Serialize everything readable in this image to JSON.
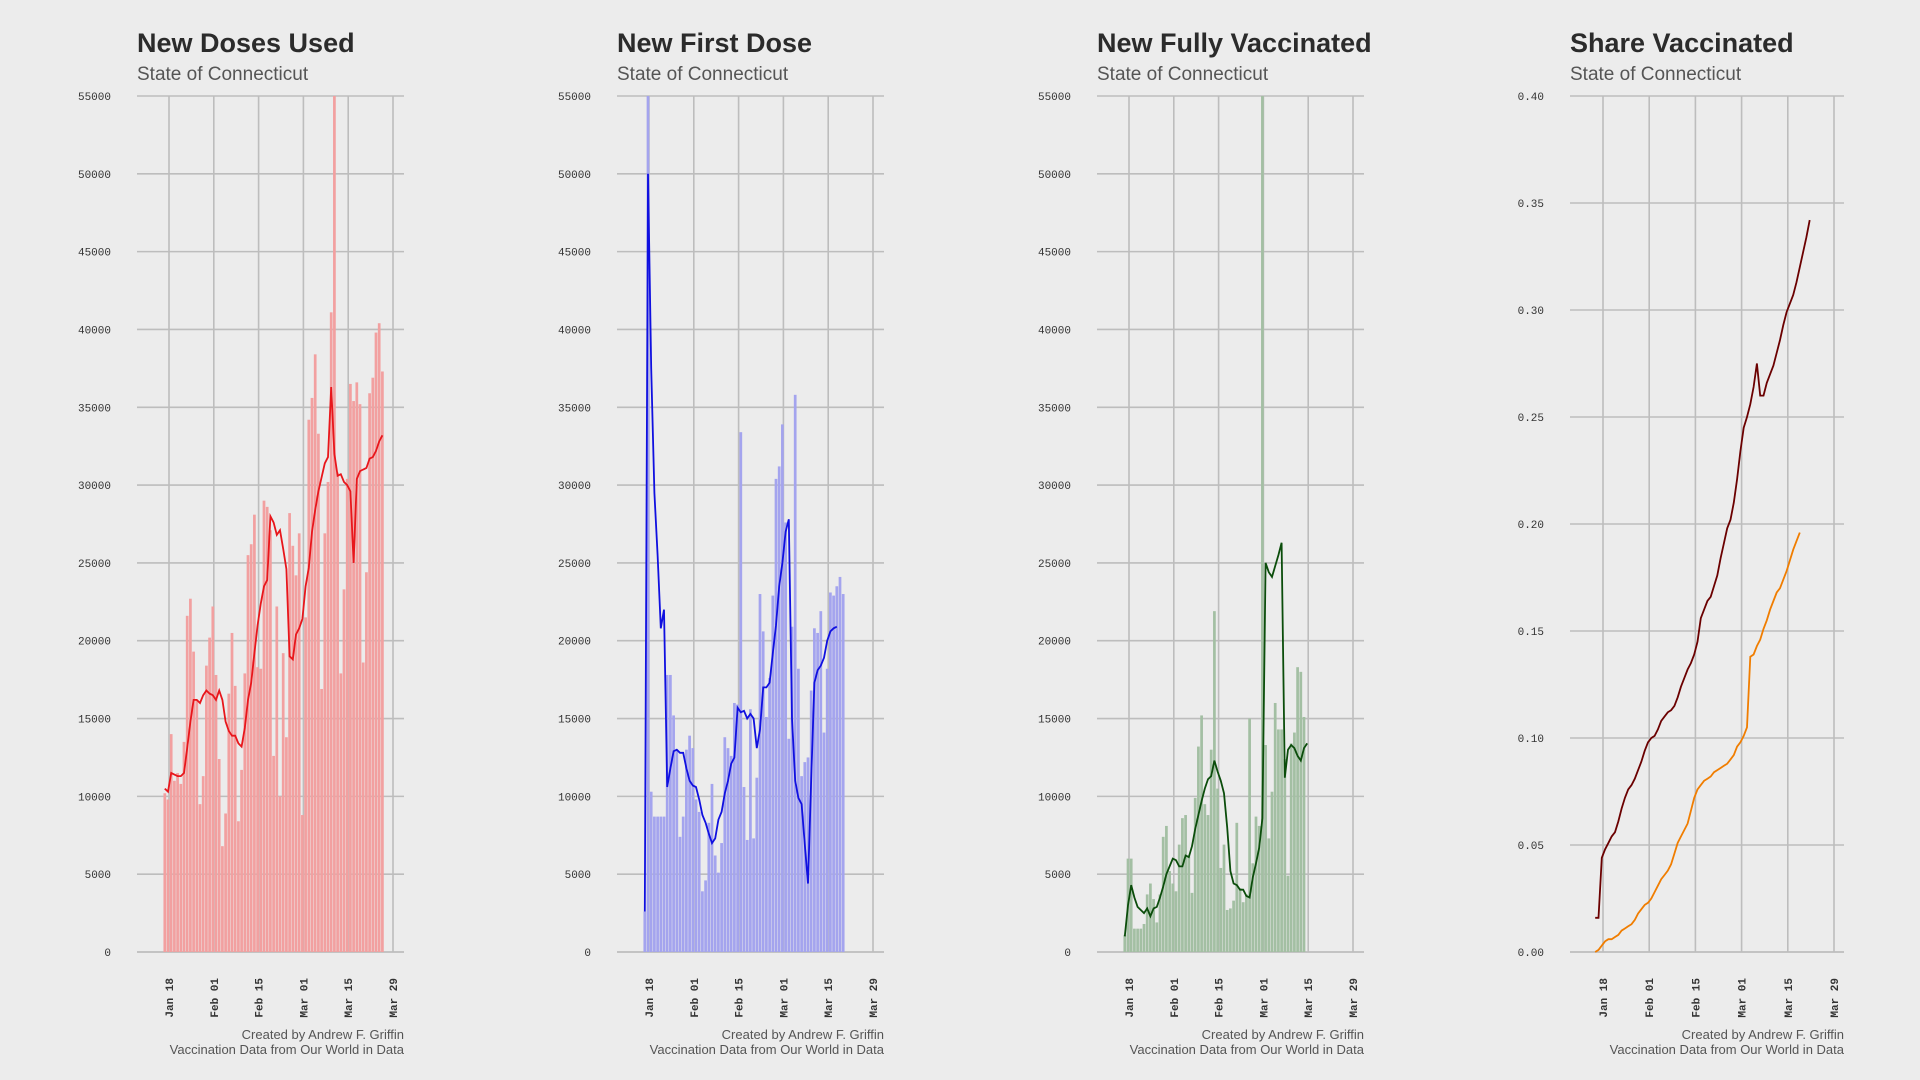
{
  "chart_data": [
    {
      "type": "bar+line",
      "title": "New Doses Used",
      "subtitle": "State of Connecticut",
      "caption_line1": "Created by Andrew F. Griffin",
      "caption_line2": "Vaccination Data from Our World in Data",
      "ylim": [
        0,
        55000
      ],
      "yticks": [
        "0",
        "5000",
        "10000",
        "15000",
        "20000",
        "25000",
        "30000",
        "35000",
        "40000",
        "45000",
        "50000",
        "55000"
      ],
      "xticks": [
        "Jan 18",
        "Feb 01",
        "Feb 15",
        "Mar 01",
        "Mar 15",
        "Mar 29"
      ],
      "x_start": "2021-01-12",
      "bar_color": "#f2a0a0",
      "line_color": "#e8161b",
      "bars": [
        10200,
        9800,
        14000,
        11000,
        11500,
        10800,
        13500,
        21600,
        22700,
        19300,
        16200,
        9500,
        11300,
        18400,
        20200,
        22200,
        17800,
        12400,
        6800,
        8900,
        16600,
        20500,
        17100,
        8400,
        11700,
        17900,
        25500,
        26200,
        28100,
        18300,
        18200,
        29000,
        28600,
        27100,
        12600,
        22200,
        10000,
        19200,
        13800,
        28200,
        26100,
        24200,
        26900,
        8800,
        21500,
        34200,
        35600,
        38400,
        33300,
        16900,
        26900,
        30200,
        41100,
        55000,
        30800,
        17900,
        23300,
        30400,
        36500,
        35400,
        36600,
        35200,
        18600,
        24400,
        35900,
        36900,
        39800,
        40400,
        37300
      ],
      "line": [
        10500,
        10300,
        11500,
        11400,
        11300,
        11300,
        11500,
        13100,
        14800,
        16200,
        16200,
        16000,
        16500,
        16800,
        16600,
        16500,
        16200,
        16800,
        16200,
        14800,
        14200,
        13900,
        13900,
        13400,
        13200,
        14400,
        16200,
        17300,
        19200,
        21000,
        22400,
        23500,
        23900,
        28000,
        27600,
        26800,
        27100,
        25900,
        24600,
        19000,
        18800,
        20400,
        20800,
        21400,
        23500,
        24700,
        27000,
        28400,
        29600,
        30500,
        31400,
        31800,
        36300,
        32000,
        30600,
        30700,
        30200,
        30000,
        29600,
        25000,
        30400,
        30900,
        31000,
        31100,
        31700,
        31800,
        32200,
        32800,
        33200
      ]
    },
    {
      "type": "bar+line",
      "title": "New First Dose",
      "subtitle": "State of Connecticut",
      "caption_line1": "Created by Andrew F. Griffin",
      "caption_line2": "Vaccination Data from Our World in Data",
      "ylim": [
        0,
        55000
      ],
      "yticks": [
        "0",
        "5000",
        "10000",
        "15000",
        "20000",
        "25000",
        "30000",
        "35000",
        "40000",
        "45000",
        "50000",
        "55000"
      ],
      "xticks": [
        "Jan 18",
        "Feb 01",
        "Feb 15",
        "Mar 01",
        "Mar 15",
        "Mar 29"
      ],
      "x_start": "2021-01-12",
      "bar_color": "#a4a4ee",
      "line_color": "#1010e0",
      "bars": [
        2600,
        55000,
        10300,
        8700,
        8700,
        8700,
        8700,
        17800,
        17800,
        15200,
        13000,
        7400,
        8700,
        13000,
        13900,
        13100,
        9800,
        9000,
        3900,
        4600,
        8300,
        10800,
        6200,
        5100,
        7000,
        13800,
        13100,
        12600,
        16000,
        15900,
        33400,
        10600,
        7200,
        15600,
        7300,
        11200,
        23000,
        20600,
        15100,
        17600,
        22900,
        30400,
        31200,
        33900,
        27600,
        13700,
        20900,
        35800,
        18200,
        11300,
        12200,
        12500,
        16800,
        20800,
        20500,
        21900,
        14100,
        18200,
        23100,
        22900,
        23500,
        24100,
        23000
      ],
      "line": [
        2600,
        50000,
        37500,
        29500,
        25500,
        20800,
        22000,
        10600,
        11800,
        12900,
        13000,
        12800,
        12800,
        11800,
        11000,
        10700,
        10600,
        9800,
        8800,
        8300,
        7600,
        7000,
        7300,
        8500,
        9000,
        10200,
        11000,
        12100,
        12500,
        15700,
        15400,
        15500,
        15000,
        15300,
        15000,
        13100,
        14300,
        17000,
        17000,
        17300,
        19200,
        21000,
        23500,
        25000,
        27000,
        27800,
        15000,
        11000,
        9900,
        9500,
        6900,
        4400,
        11100,
        17300,
        18100,
        18400,
        18900,
        20000,
        20600,
        20800,
        20900
      ]
    },
    {
      "type": "bar+line",
      "title": "New Fully Vaccinated",
      "subtitle": "State of Connecticut",
      "caption_line1": "Created by Andrew F. Griffin",
      "caption_line2": "Vaccination Data from Our World in Data",
      "ylim": [
        0,
        55000
      ],
      "yticks": [
        "0",
        "5000",
        "10000",
        "15000",
        "20000",
        "25000",
        "30000",
        "35000",
        "40000",
        "45000",
        "50000",
        "55000"
      ],
      "xticks": [
        "Jan 18",
        "Feb 01",
        "Feb 15",
        "Mar 01",
        "Mar 15",
        "Mar 29"
      ],
      "x_start": "2021-01-12",
      "bar_color": "#a3bfa3",
      "line_color": "#0b4d0b",
      "bars": [
        1100,
        6000,
        6000,
        1500,
        1500,
        1500,
        1800,
        3700,
        4400,
        3400,
        1900,
        3700,
        7400,
        8100,
        5200,
        4400,
        3900,
        6900,
        8600,
        8800,
        6200,
        3800,
        9900,
        13200,
        15200,
        9500,
        8800,
        13000,
        21900,
        10500,
        5400,
        6900,
        2700,
        2800,
        3300,
        8300,
        4100,
        3200,
        3700,
        15000,
        5700,
        8700,
        8100,
        55000,
        13300,
        7300,
        10300,
        16000,
        14300,
        14300,
        12400,
        4900,
        13400,
        14100,
        18300,
        18000,
        15100
      ],
      "line": [
        1000,
        3000,
        4300,
        3500,
        2900,
        2700,
        2500,
        2800,
        2300,
        2800,
        2900,
        3500,
        4200,
        5000,
        5500,
        6000,
        5900,
        5500,
        5500,
        6200,
        6100,
        6800,
        7900,
        8800,
        9700,
        10500,
        11100,
        11300,
        12300,
        11600,
        11000,
        10200,
        8000,
        5200,
        4400,
        4300,
        4000,
        4000,
        3600,
        3500,
        4800,
        5700,
        6700,
        8600,
        25000,
        24400,
        24100,
        24800,
        25500,
        26300,
        11200,
        13000,
        13300,
        13100,
        12600,
        12300,
        13100,
        13400
      ]
    },
    {
      "type": "line",
      "title": "Share Vaccinated",
      "subtitle": "State of Connecticut",
      "caption_line1": "Created by Andrew F. Griffin",
      "caption_line2": "Vaccination Data from Our World in Data",
      "ylim": [
        0,
        0.4
      ],
      "yticks": [
        "0.00",
        "0.05",
        "0.10",
        "0.15",
        "0.20",
        "0.25",
        "0.30",
        "0.35",
        "0.40"
      ],
      "xticks": [
        "Jan 18",
        "Feb 01",
        "Feb 15",
        "Mar 01",
        "Mar 15",
        "Mar 29"
      ],
      "x_start": "2021-01-12",
      "series": [
        {
          "color": "#6b0000",
          "values": [
            0.016,
            0.016,
            0.044,
            0.048,
            0.051,
            0.054,
            0.056,
            0.061,
            0.067,
            0.072,
            0.076,
            0.078,
            0.081,
            0.085,
            0.089,
            0.094,
            0.098,
            0.1,
            0.101,
            0.104,
            0.108,
            0.11,
            0.112,
            0.113,
            0.115,
            0.119,
            0.124,
            0.128,
            0.132,
            0.135,
            0.139,
            0.145,
            0.156,
            0.16,
            0.164,
            0.166,
            0.171,
            0.176,
            0.184,
            0.191,
            0.198,
            0.202,
            0.21,
            0.221,
            0.234,
            0.245,
            0.25,
            0.256,
            0.264,
            0.275,
            0.26,
            0.26,
            0.266,
            0.27,
            0.274,
            0.28,
            0.286,
            0.293,
            0.299,
            0.303,
            0.307,
            0.313,
            0.32,
            0.327,
            0.334,
            0.342
          ]
        },
        {
          "color": "#f07d00",
          "values": [
            0.0,
            0.001,
            0.003,
            0.005,
            0.006,
            0.006,
            0.007,
            0.008,
            0.01,
            0.011,
            0.012,
            0.013,
            0.015,
            0.018,
            0.02,
            0.022,
            0.023,
            0.025,
            0.028,
            0.031,
            0.034,
            0.036,
            0.038,
            0.041,
            0.046,
            0.051,
            0.054,
            0.057,
            0.06,
            0.066,
            0.072,
            0.076,
            0.078,
            0.08,
            0.081,
            0.082,
            0.084,
            0.085,
            0.086,
            0.087,
            0.088,
            0.09,
            0.092,
            0.096,
            0.098,
            0.101,
            0.105,
            0.138,
            0.139,
            0.143,
            0.146,
            0.151,
            0.155,
            0.16,
            0.164,
            0.168,
            0.17,
            0.174,
            0.178,
            0.183,
            0.188,
            0.192,
            0.196
          ]
        }
      ]
    }
  ]
}
